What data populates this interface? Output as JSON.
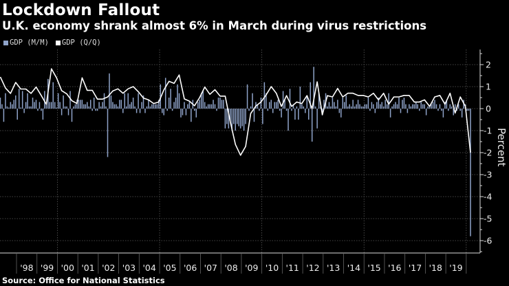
{
  "header": {
    "title": "Lockdown Fallout",
    "subtitle": "U.K. economy shrank almost 6% in March during virus restrictions"
  },
  "footer": {
    "source": "Source: Office for National Statistics"
  },
  "colors": {
    "background": "#000000",
    "monthly_bar": "#8fa3c9",
    "quarterly_line": "#ffffff",
    "grid": "#666666"
  },
  "chart_data": {
    "type": "bar+line",
    "title": "Lockdown Fallout",
    "subtitle": "U.K. economy shrank almost 6% in March during virus restrictions",
    "ylabel": "Percent",
    "xlabel": "",
    "ylim": [
      -6.5,
      2.6
    ],
    "yticks": [
      "2",
      "1",
      "0",
      "-1",
      "-2",
      "-3",
      "-4",
      "-5",
      "-6"
    ],
    "ytick_values": [
      2,
      1,
      0,
      -1,
      -2,
      -3,
      -4,
      -5,
      -6
    ],
    "xtick_labels": [
      "'98",
      "'99",
      "'00",
      "'01",
      "'02",
      "'03",
      "'04",
      "'05",
      "'06",
      "'07",
      "'08",
      "'09",
      "'10",
      "'11",
      "'12",
      "'13",
      "'14",
      "'15",
      "'16",
      "'17",
      "'18",
      "'19"
    ],
    "xtick_years": [
      1998,
      1999,
      2000,
      2001,
      2002,
      2003,
      2004,
      2005,
      2006,
      2007,
      2008,
      2009,
      2010,
      2011,
      2012,
      2013,
      2014,
      2015,
      2016,
      2017,
      2018,
      2019
    ],
    "grid": true,
    "legend_position": "top-left",
    "series": [
      {
        "name": "GDP (M/M)",
        "kind": "bar",
        "frequency": "monthly",
        "start": "1997-03",
        "end": "2020-03",
        "values": [
          0.5,
          0.2,
          -0.6,
          0.7,
          0.1,
          0.05,
          0.3,
          0.2,
          0.4,
          0.6,
          -0.5,
          0.9,
          0.05,
          0.8,
          -0.2,
          0.3,
          0.7,
          0.1,
          0.1,
          0.5,
          0.3,
          0.4,
          -0.1,
          0.3,
          -0.1,
          -0.5,
          0.8,
          0.2,
          1.35,
          0.3,
          0.3,
          1.2,
          0.3,
          0.05,
          0.7,
          0.3,
          -0.3,
          0.6,
          0.1,
          0.1,
          -0.3,
          0.8,
          -0.6,
          0.1,
          0.2,
          0.4,
          0.4,
          0.4,
          0.4,
          0.2,
          0.2,
          0.3,
          0.1,
          0.4,
          -0.1,
          0.5,
          -0.1,
          -0.1,
          0.3,
          0.1,
          0.3,
          0.7,
          0.1,
          -2.2,
          1.6,
          0.6,
          0.3,
          0.2,
          0.2,
          0.1,
          0.4,
          0.4,
          -0.2,
          0.7,
          0.1,
          0.7,
          0.2,
          0.3,
          0.5,
          0.1,
          -0.2,
          0.7,
          -0.2,
          0.3,
          0.6,
          -0.2,
          0.1,
          0.4,
          0.1,
          0.2,
          0.2,
          0.2,
          0.2,
          0.4,
          1.1,
          -0.2,
          -0.3,
          1.4,
          -0.1,
          0.5,
          0.9,
          -0.1,
          0.3,
          0.5,
          1.1,
          0.7,
          -0.4,
          -0.3,
          0.3,
          -0.3,
          0.2,
          0.3,
          -0.6,
          0.4,
          -0.1,
          -0.4,
          0.3,
          0.4,
          0.7,
          0.8,
          0.3,
          0.1,
          0.2,
          0.2,
          0.2,
          0.4,
          0.2,
          -0.1,
          0.5,
          0.5,
          0.4,
          0.4,
          -0.9,
          -0.7,
          -0.9,
          -0.6,
          -1.0,
          -0.7,
          -1.0,
          -0.7,
          -0.8,
          -0.9,
          -0.8,
          -1.0,
          -0.7,
          1.1,
          -0.1,
          0.1,
          0.7,
          -0.6,
          0.3,
          0.2,
          -0.1,
          0.5,
          -0.7,
          1.2,
          0.7,
          -0.1,
          0.3,
          0.4,
          -0.2,
          0.3,
          0.3,
          0.4,
          -0.1,
          -0.4,
          0.8,
          0.4,
          -0.1,
          -1.0,
          0.9,
          -0.1,
          0.2,
          -0.5,
          0.1,
          -0.5,
          1.0,
          0.2,
          0.1,
          -0.2,
          0.6,
          -0.5,
          1.2,
          -1.5,
          1.9,
          0.1,
          -0.9,
          0.7,
          0.1,
          -0.3,
          0.4,
          0.7,
          0.1,
          0.3,
          0.1,
          0.5,
          0.3,
          0.1,
          0.4,
          -0.2,
          -0.4,
          0.5,
          0.3,
          0.6,
          0.1,
          0.2,
          0.1,
          0.4,
          0.1,
          0.2,
          0.4,
          0.2,
          0.1,
          0.1,
          0.2,
          0.2,
          0.5,
          -0.1,
          0.3,
          0.2,
          -0.2,
          0.3,
          0.5,
          0.2,
          0.3,
          0.1,
          0.4,
          0.2,
          0.7,
          -0.4,
          0.1,
          0.2,
          0.3,
          0.2,
          0.5,
          -0.2,
          0.4,
          0.5,
          0.2,
          -0.2,
          0.2,
          0.1,
          0.2,
          0.2,
          0.3,
          0.2,
          -0.1,
          0.3,
          0.2,
          0.2,
          -0.3,
          0.1,
          0.1,
          0.2,
          0.3,
          0.4,
          0.2,
          -0.1,
          0.2,
          -0.1,
          -0.4,
          0.3,
          0.4,
          -0.1,
          0.2,
          0.1,
          -0.3,
          0.2,
          -0.1,
          0.2,
          -0.1,
          -0.4,
          0.4,
          0.2,
          -0.1,
          -0.1,
          -5.8
        ]
      },
      {
        "name": "GDP (Q/Q)",
        "kind": "line",
        "frequency": "quarterly",
        "start": "1997-Q1",
        "end": "2020-Q1",
        "values": [
          1.44,
          0.94,
          0.69,
          1.19,
          0.89,
          0.89,
          0.69,
          0.98,
          0.6,
          0.2,
          1.81,
          1.4,
          0.82,
          0.67,
          0.36,
          0.23,
          1.4,
          0.83,
          0.83,
          0.43,
          0.43,
          0.53,
          0.8,
          0.9,
          0.7,
          0.9,
          1.0,
          0.77,
          0.48,
          0.4,
          0.23,
          0.3,
          0.85,
          1.24,
          1.15,
          1.53,
          0.44,
          0.34,
          0.13,
          0.5,
          0.98,
          0.65,
          0.86,
          0.57,
          0.57,
          -0.6,
          -1.63,
          -2.12,
          -1.72,
          -0.22,
          0.12,
          0.3,
          0.62,
          1.0,
          0.7,
          0.1,
          0.59,
          0.1,
          0.3,
          0.23,
          0.59,
          0.0,
          1.22,
          -0.28,
          0.59,
          0.53,
          0.92,
          0.53,
          0.7,
          0.7,
          0.6,
          0.6,
          0.53,
          0.7,
          0.4,
          0.7,
          0.2,
          0.53,
          0.53,
          0.6,
          0.6,
          0.3,
          0.3,
          0.4,
          0.1,
          0.53,
          0.6,
          0.2,
          0.7,
          -0.2,
          0.53,
          0.1,
          -2.0
        ]
      }
    ]
  }
}
